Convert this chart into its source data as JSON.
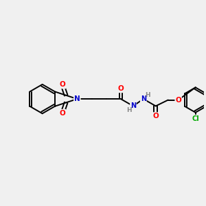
{
  "background_color": "#f0f0f0",
  "bond_color": "#000000",
  "atom_colors": {
    "O": "#ff0000",
    "N": "#0000cc",
    "Cl": "#00aa00",
    "H": "#888888",
    "C": "#000000"
  },
  "figsize": [
    3.0,
    3.0
  ],
  "dpi": 100
}
